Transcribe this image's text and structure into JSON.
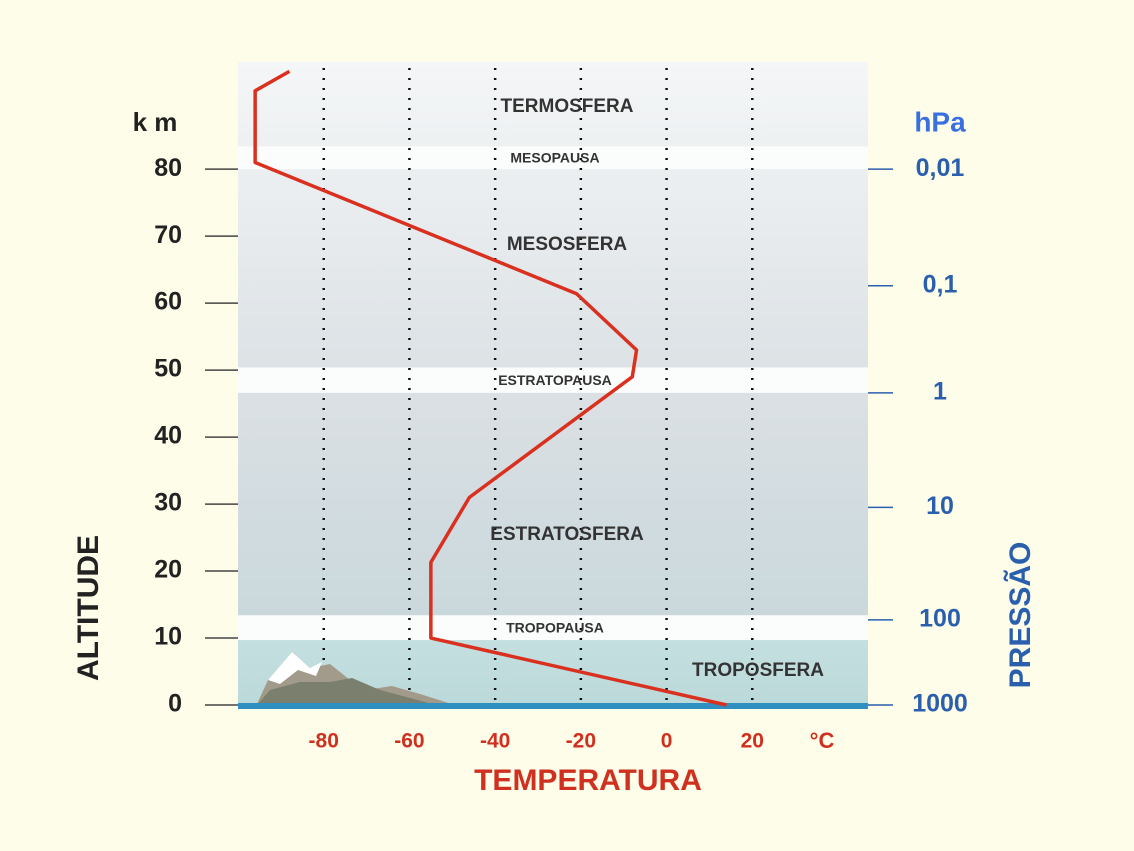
{
  "chart_data": {
    "type": "line",
    "x_label": "TEMPERATURA",
    "x_unit": "°C",
    "y_label": "ALTITUDE",
    "y_unit": "k m",
    "y2_label": "PRESSÃO",
    "y2_unit": "hPa",
    "xlim": [
      -100,
      47
    ],
    "xticks": [
      -80,
      -60,
      -40,
      -20,
      0,
      20
    ],
    "ylim": [
      0,
      96
    ],
    "yticks": [
      0,
      10,
      20,
      30,
      40,
      50,
      60,
      70,
      80
    ],
    "y2ticks": [
      {
        "value": 0.01,
        "label": "0,01"
      },
      {
        "value": 0.1,
        "label": "0,1"
      },
      1,
      10,
      100,
      1000
    ],
    "y2tick_altitudes": [
      80,
      62.6,
      46.6,
      29.5,
      12.7,
      0
    ],
    "grid": true,
    "series": [
      {
        "color": "#d9301f",
        "x": [
          14,
          -55,
          -55,
          -46,
          -8,
          -7,
          -21,
          -96,
          -96,
          -88
        ],
        "values": [
          0,
          10,
          21.3,
          31,
          49,
          53,
          61.4,
          81,
          91.7,
          94.6
        ]
      }
    ],
    "layer_labels": [
      "TERMOSFERA",
      "MESOSFERA",
      "ESTRATOSFERA",
      "TROPOSFERA"
    ],
    "pause_bands": [
      {
        "label": "MESOPAUSA",
        "ylim": [
          80,
          83.4
        ]
      },
      {
        "label": "ESTRATOPAUSA",
        "ylim": [
          46.6,
          50.4
        ]
      },
      {
        "label": "TROPOPAUSA",
        "ylim": [
          9.7,
          13.4
        ]
      }
    ]
  }
}
